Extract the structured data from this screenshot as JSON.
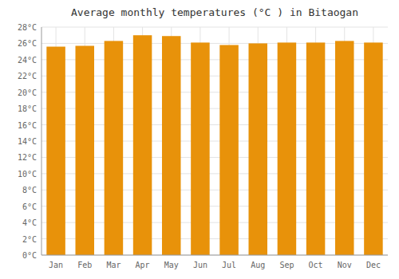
{
  "chart_data": {
    "type": "bar",
    "title": "Average monthly temperatures (°C ) in Bitaogan",
    "categories": [
      "Jan",
      "Feb",
      "Mar",
      "Apr",
      "May",
      "Jun",
      "Jul",
      "Aug",
      "Sep",
      "Oct",
      "Nov",
      "Dec"
    ],
    "values": [
      25.6,
      25.7,
      26.3,
      27.0,
      26.9,
      26.1,
      25.8,
      26.0,
      26.1,
      26.1,
      26.3,
      26.1
    ],
    "color": "#E8920A",
    "ylim": [
      0,
      28
    ],
    "yticks": [
      {
        "value": 0,
        "label": "0°C"
      },
      {
        "value": 2,
        "label": "2°C"
      },
      {
        "value": 4,
        "label": "4°C"
      },
      {
        "value": 6,
        "label": "6°C"
      },
      {
        "value": 8,
        "label": "8°C"
      },
      {
        "value": 10,
        "label": "10°C"
      },
      {
        "value": 12,
        "label": "12°C"
      },
      {
        "value": 14,
        "label": "14°C"
      },
      {
        "value": 16,
        "label": "16°C"
      },
      {
        "value": 18,
        "label": "18°C"
      },
      {
        "value": 20,
        "label": "20°C"
      },
      {
        "value": 22,
        "label": "22°C"
      },
      {
        "value": 24,
        "label": "24°C"
      },
      {
        "value": 26,
        "label": "26°C"
      },
      {
        "value": 28,
        "label": "28°C"
      }
    ],
    "grid": true
  }
}
